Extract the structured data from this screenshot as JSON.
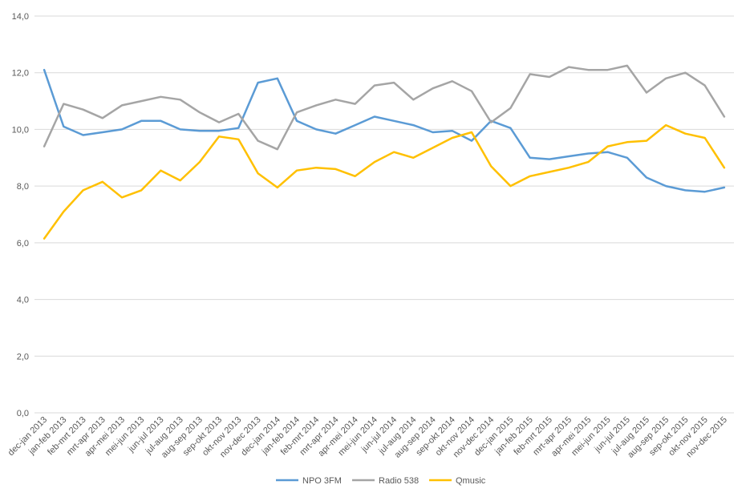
{
  "chart_data": {
    "type": "line",
    "title": "",
    "xlabel": "",
    "ylabel": "",
    "ylim": [
      0,
      14
    ],
    "yticks": [
      "0,0",
      "2,0",
      "4,0",
      "6,0",
      "8,0",
      "10,0",
      "12,0",
      "14,0"
    ],
    "grid": true,
    "legend_position": "bottom",
    "categories": [
      "dec-jan 2013",
      "jan-feb 2013",
      "feb-mrt 2013",
      "mrt-apr 2013",
      "apr-mei 2013",
      "mei-jun 2013",
      "jun-jul 2013",
      "jul-aug 2013",
      "aug-sep 2013",
      "sep-okt 2013",
      "okt-nov 2013",
      "nov-dec 2013",
      "dec-jan 2014",
      "jan-feb 2014",
      "feb-mrt 2014",
      "mrt-apr 2014",
      "apr-mei 2014",
      "mei-jun 2014",
      "jun-jul 2014",
      "jul-aug 2014",
      "aug-sep 2014",
      "sep-okt 2014",
      "okt-nov 2014",
      "nov-dec 2014",
      "dec-jan 2015",
      "jan-feb 2015",
      "feb-mrt 2015",
      "mrt-apr 2015",
      "apr-mei 2015",
      "mei-jun 2015",
      "jun-jul 2015",
      "jul-aug 2015",
      "aug-sep 2015",
      "sep-okt 2015",
      "okt-nov 2015",
      "nov-dec 2015"
    ],
    "series": [
      {
        "name": "NPO 3FM",
        "color": "#5B9BD5",
        "values": [
          12.1,
          10.1,
          9.8,
          9.9,
          10.0,
          10.3,
          10.3,
          10.0,
          9.95,
          9.95,
          10.05,
          11.65,
          11.8,
          10.3,
          10.0,
          9.85,
          10.15,
          10.45,
          10.3,
          10.15,
          9.9,
          9.95,
          9.6,
          10.3,
          10.05,
          9.0,
          8.95,
          9.05,
          9.15,
          9.2,
          9.0,
          8.3,
          8.0,
          7.85,
          7.8,
          7.95
        ]
      },
      {
        "name": "Radio 538",
        "color": "#A5A5A5",
        "values": [
          9.4,
          10.9,
          10.7,
          10.4,
          10.85,
          11.0,
          11.15,
          11.05,
          10.6,
          10.25,
          10.55,
          9.6,
          9.3,
          10.6,
          10.85,
          11.05,
          10.9,
          11.55,
          11.65,
          11.05,
          11.45,
          11.7,
          11.35,
          10.25,
          10.75,
          11.95,
          11.85,
          12.2,
          12.1,
          12.1,
          12.25,
          11.3,
          11.8,
          12.0,
          11.55,
          10.45
        ]
      },
      {
        "name": "Qmusic",
        "color": "#FFC000",
        "values": [
          6.15,
          7.1,
          7.85,
          8.15,
          7.6,
          7.85,
          8.55,
          8.2,
          8.85,
          9.75,
          9.65,
          8.45,
          7.95,
          8.55,
          8.65,
          8.6,
          8.35,
          8.85,
          9.2,
          9.0,
          9.35,
          9.7,
          9.9,
          8.7,
          8.0,
          8.35,
          8.5,
          8.65,
          8.85,
          9.4,
          9.55,
          9.6,
          10.15,
          9.85,
          9.7,
          8.65
        ]
      }
    ]
  }
}
